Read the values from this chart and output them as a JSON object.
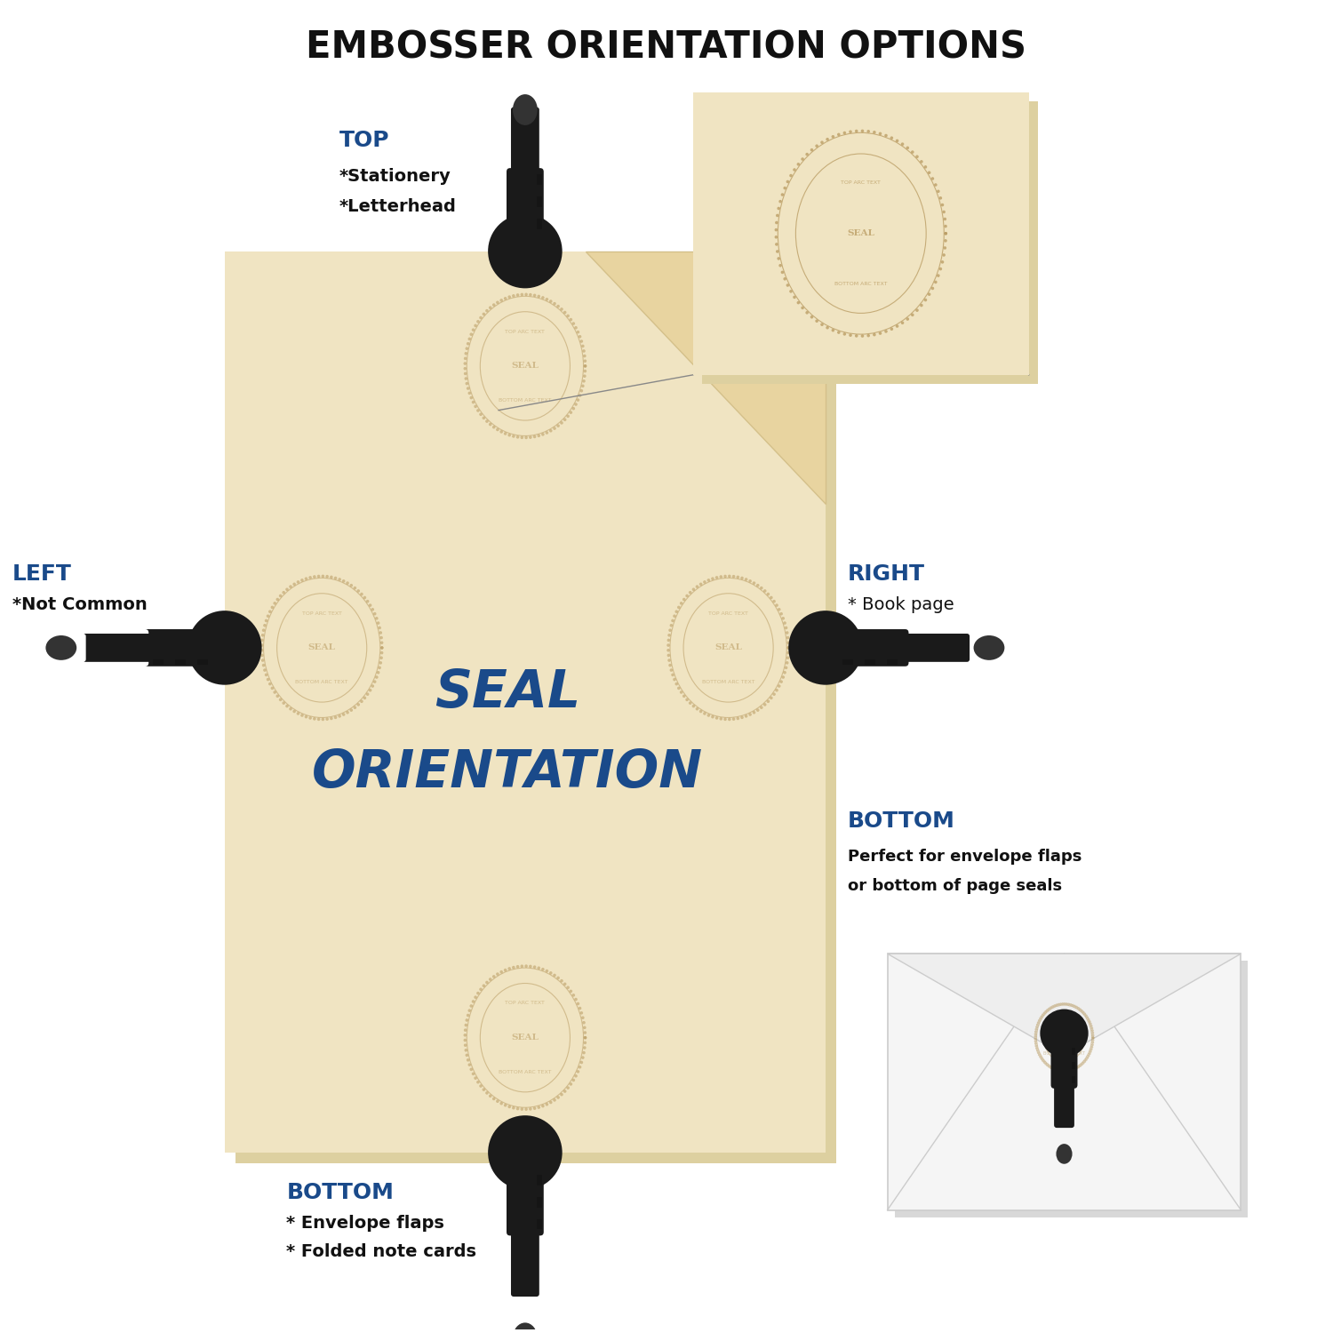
{
  "title": "EMBOSSER ORIENTATION OPTIONS",
  "background_color": "#ffffff",
  "paper_color": "#f0e4c2",
  "paper_shadow_color": "#ddd0a0",
  "embosser_dark": "#1a1a1a",
  "embosser_mid": "#333333",
  "embosser_light": "#555555",
  "seal_emboss_color": "#d4bc8a",
  "seal_line_color": "#b89a60",
  "center_text_line1": "SEAL",
  "center_text_line2": "ORIENTATION",
  "center_text_color": "#1a4a8a",
  "title_color": "#111111",
  "label_top": "TOP",
  "label_top_sub1": "*Stationery",
  "label_top_sub2": "*Letterhead",
  "label_left": "LEFT",
  "label_left_sub1": "*Not Common",
  "label_right": "RIGHT",
  "label_right_sub1": "* Book page",
  "label_bottom": "BOTTOM",
  "label_bottom_sub1": "* Envelope flaps",
  "label_bottom_sub2": "* Folded note cards",
  "label_bottom2": "BOTTOM",
  "label_bottom2_sub1": "Perfect for envelope flaps",
  "label_bottom2_sub2": "or bottom of page seals",
  "label_color": "#1a4a8a",
  "sub_label_color": "#111111",
  "envelope_color": "#f5f5f5",
  "envelope_shadow": "#e0e0e0",
  "envelope_edge": "#cccccc"
}
